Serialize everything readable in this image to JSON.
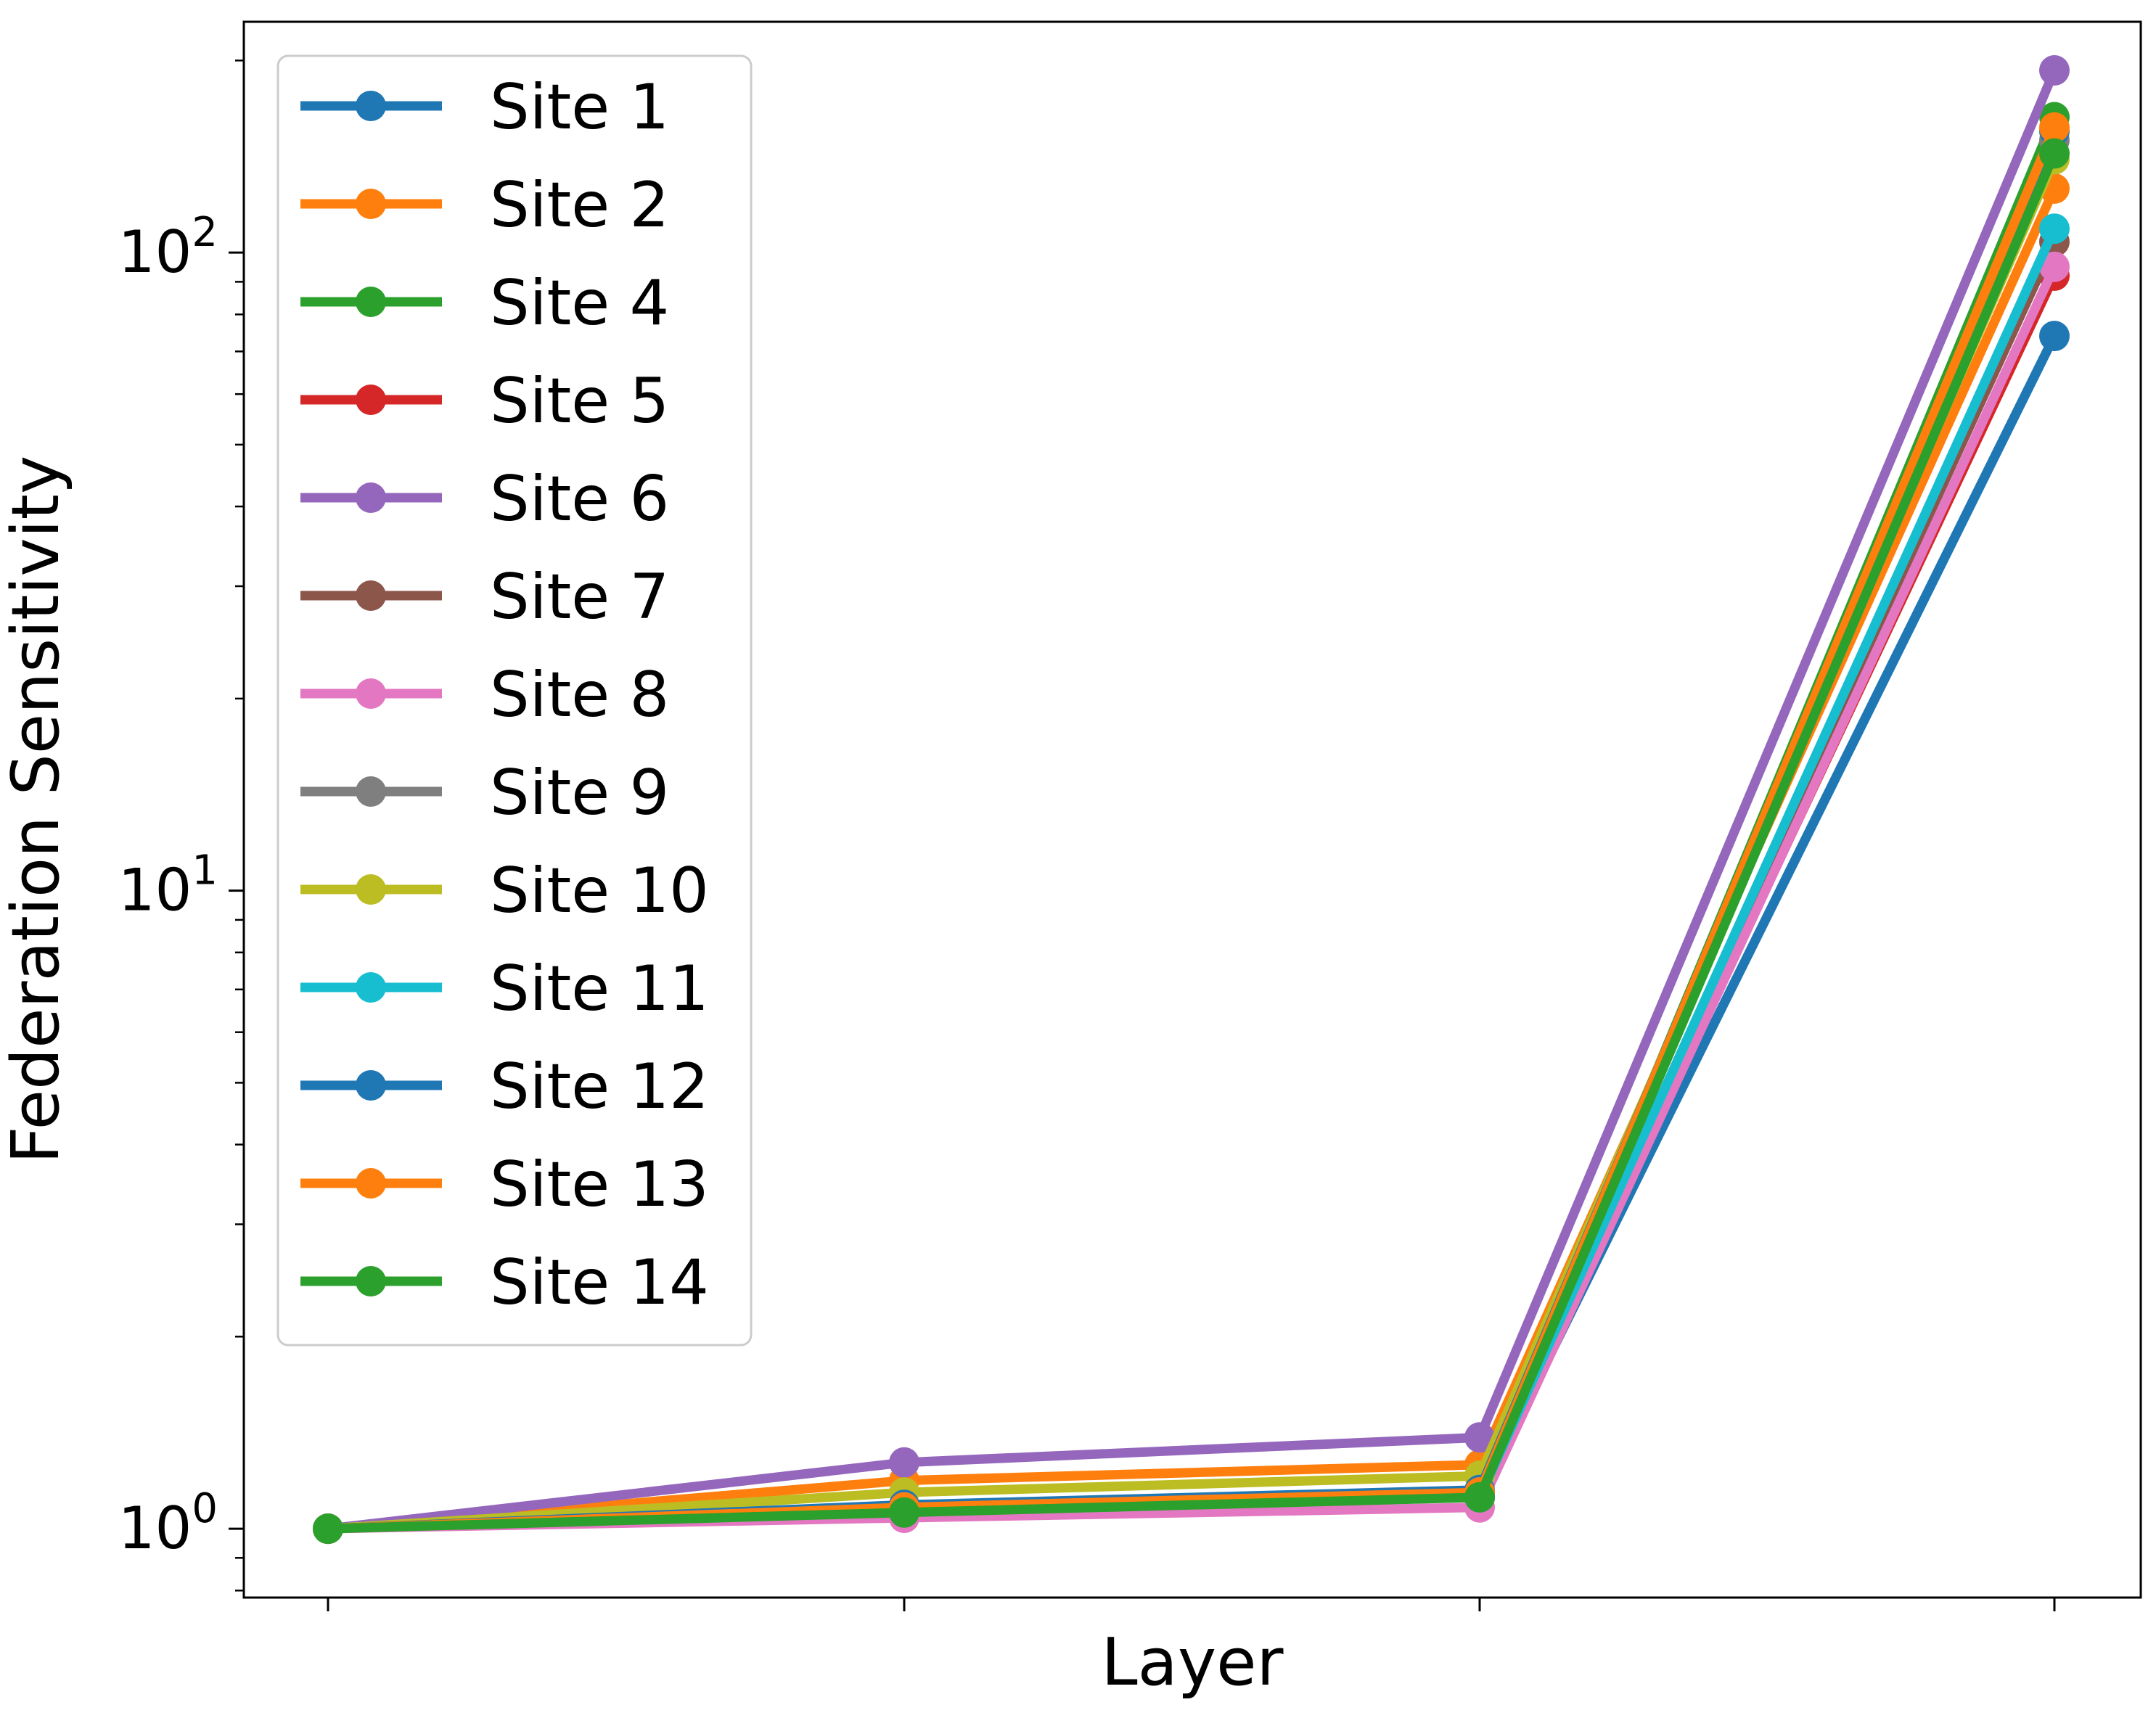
{
  "chart_data": {
    "type": "line",
    "title": "",
    "xlabel": "Layer",
    "ylabel": "Federation Sensitivity",
    "x": [
      1,
      2,
      3,
      4
    ],
    "x_tick_labels": [
      "",
      "",
      "",
      ""
    ],
    "yscale": "log",
    "ylim": [
      0.78,
      230
    ],
    "y_ticks": [
      {
        "value": 1,
        "base": "10",
        "exp": "0"
      },
      {
        "value": 10,
        "base": "10",
        "exp": "1"
      },
      {
        "value": 100,
        "base": "10",
        "exp": "2"
      }
    ],
    "grid": false,
    "legend_position": "top-left",
    "series": [
      {
        "name": "Site 1",
        "color": "#1f77b4",
        "values": [
          1.0,
          1.08,
          1.12,
          74
        ]
      },
      {
        "name": "Site 2",
        "color": "#ff7f0e",
        "values": [
          1.0,
          1.19,
          1.26,
          126
        ]
      },
      {
        "name": "Site 4",
        "color": "#2ca02c",
        "values": [
          1.0,
          1.06,
          1.13,
          163
        ]
      },
      {
        "name": "Site 5",
        "color": "#d62728",
        "values": [
          1.0,
          1.07,
          1.12,
          92
        ]
      },
      {
        "name": "Site 6",
        "color": "#9467bd",
        "values": [
          1.0,
          1.27,
          1.39,
          193
        ]
      },
      {
        "name": "Site 7",
        "color": "#8c564b",
        "values": [
          1.0,
          1.07,
          1.13,
          104
        ]
      },
      {
        "name": "Site 8",
        "color": "#e377c2",
        "values": [
          1.0,
          1.04,
          1.08,
          95
        ]
      },
      {
        "name": "Site 9",
        "color": "#7f7f7f",
        "values": [
          1.0,
          1.08,
          1.14,
          150
        ]
      },
      {
        "name": "Site 10",
        "color": "#bcbd22",
        "values": [
          1.0,
          1.14,
          1.21,
          140
        ]
      },
      {
        "name": "Site 11",
        "color": "#17becf",
        "values": [
          1.0,
          1.07,
          1.12,
          109
        ]
      },
      {
        "name": "Site 12",
        "color": "#1f77b4",
        "values": [
          1.0,
          1.09,
          1.15,
          155
        ]
      },
      {
        "name": "Site 13",
        "color": "#ff7f0e",
        "values": [
          1.0,
          1.08,
          1.14,
          157
        ]
      },
      {
        "name": "Site 14",
        "color": "#2ca02c",
        "values": [
          1.0,
          1.06,
          1.12,
          143
        ]
      }
    ]
  }
}
